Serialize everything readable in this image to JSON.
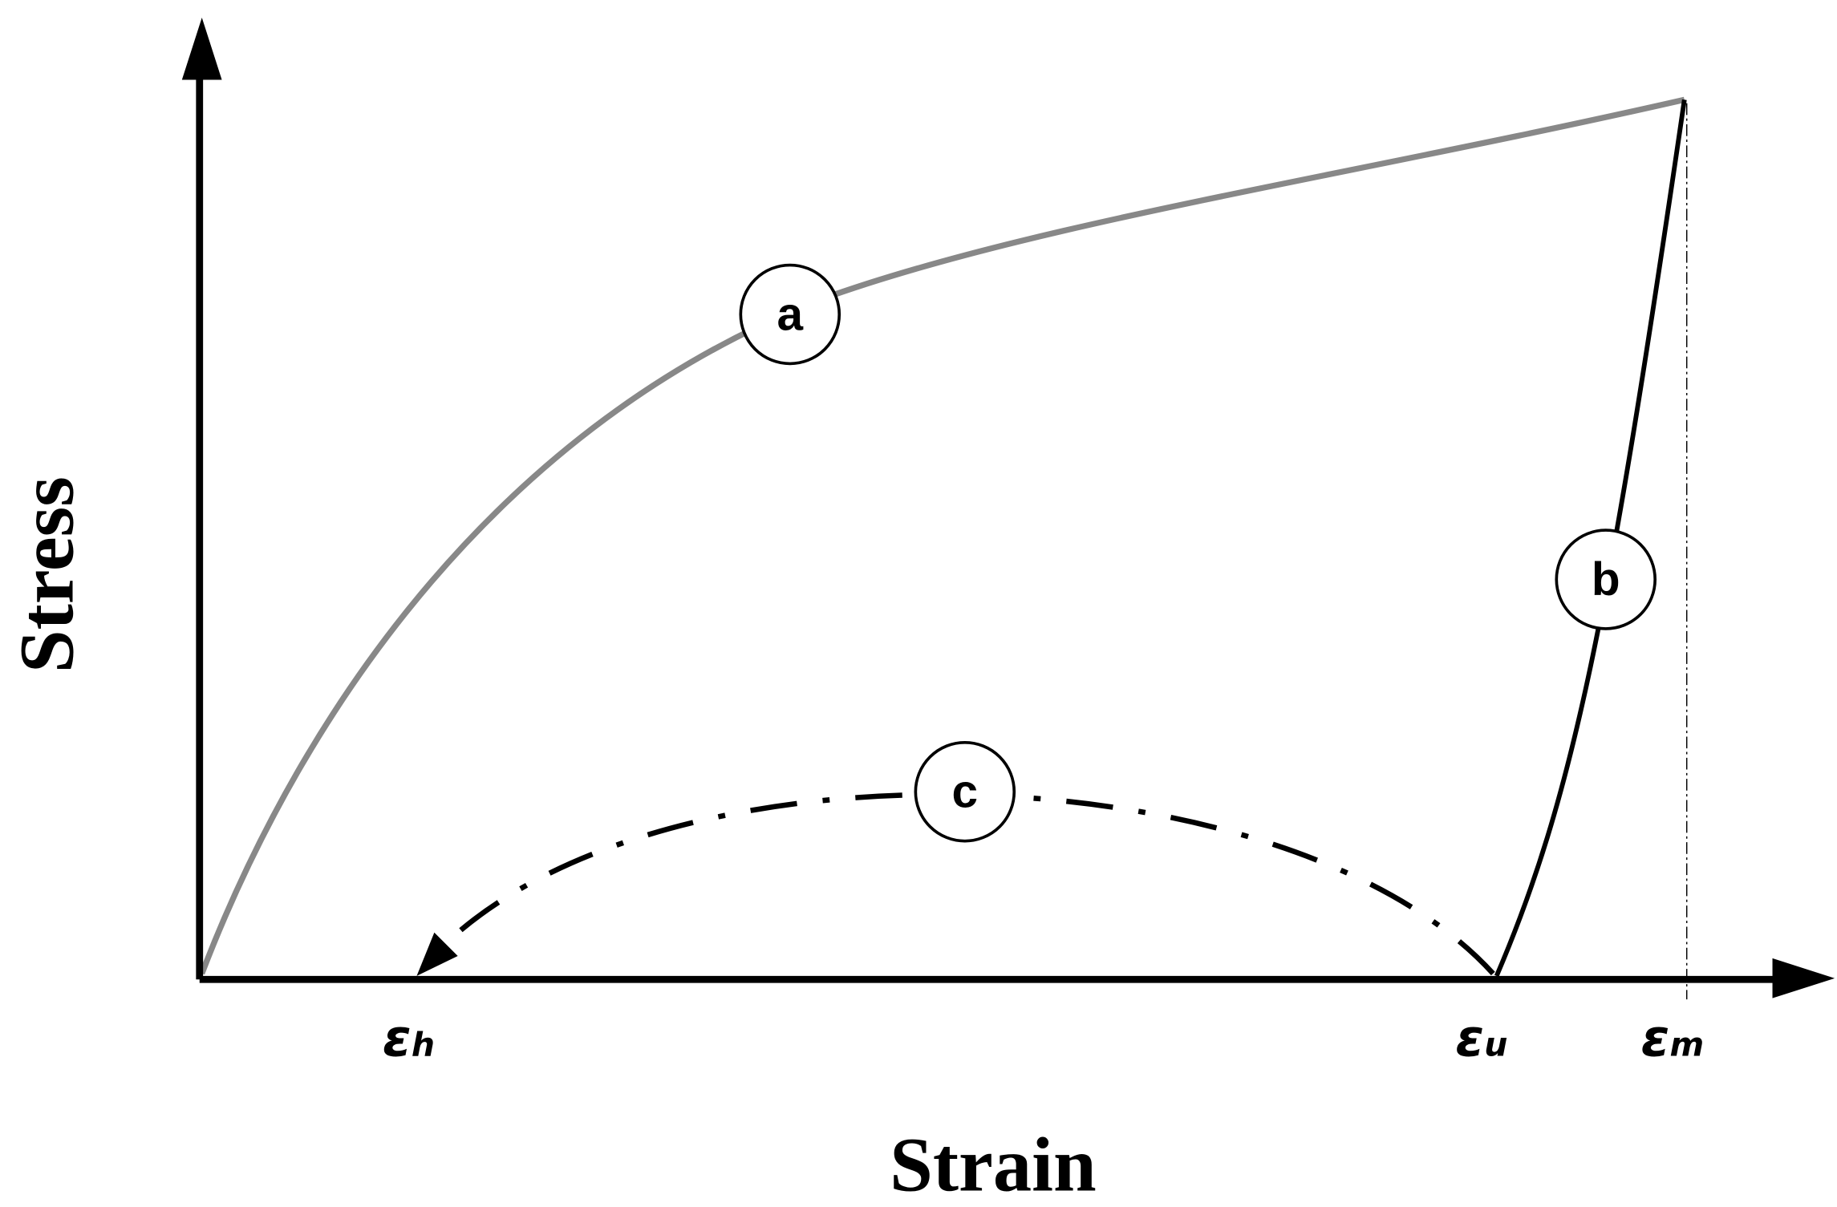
{
  "axes": {
    "y_label": "Stress",
    "x_label": "Strain"
  },
  "curves": [
    {
      "label": "a"
    },
    {
      "label": "b"
    },
    {
      "label": "c"
    }
  ],
  "strain_marks": [
    {
      "symbol": "ε",
      "subscript": "h"
    },
    {
      "symbol": "ε",
      "subscript": "u"
    },
    {
      "symbol": "ε",
      "subscript": "m"
    }
  ]
}
